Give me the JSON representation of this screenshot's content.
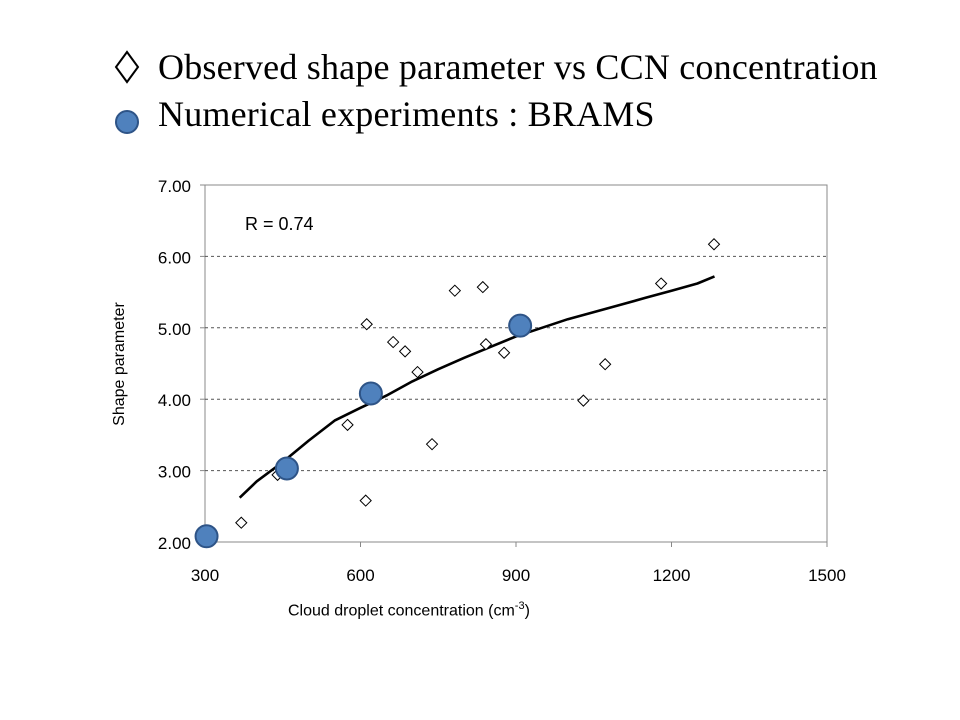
{
  "legend": {
    "observed_label": "Observed shape parameter vs CCN concentration",
    "numerical_label": "Numerical experiments : BRAMS"
  },
  "chart_data": {
    "type": "scatter",
    "xlabel_main": "Cloud droplet concentration (cm",
    "xlabel_sup": "-3",
    "xlabel_tail": ")",
    "ylabel": "Shape parameter",
    "annotation": "R = 0.74",
    "xlim": [
      300,
      1500
    ],
    "ylim": [
      2.0,
      7.0
    ],
    "x_ticks": [
      300,
      600,
      900,
      1200,
      1500
    ],
    "y_ticks": [
      2.0,
      3.0,
      4.0,
      5.0,
      6.0,
      7.0
    ],
    "x_tick_labels": [
      "300",
      "600",
      "900",
      "1200",
      "1500"
    ],
    "y_tick_labels": [
      "2.00",
      "3.00",
      "4.00",
      "5.00",
      "6.00",
      "7.00"
    ],
    "grid": "horizontal dashed",
    "series": [
      {
        "marker": "open-diamond",
        "points": [
          [
            370,
            2.27
          ],
          [
            440,
            2.94
          ],
          [
            575,
            3.64
          ],
          [
            610,
            2.58
          ],
          [
            612,
            5.05
          ],
          [
            663,
            4.8
          ],
          [
            686,
            4.67
          ],
          [
            710,
            4.38
          ],
          [
            738,
            3.37
          ],
          [
            782,
            5.52
          ],
          [
            836,
            5.57
          ],
          [
            842,
            4.77
          ],
          [
            877,
            4.65
          ],
          [
            1030,
            3.98
          ],
          [
            1072,
            4.49
          ],
          [
            1180,
            5.62
          ],
          [
            1282,
            6.17
          ]
        ]
      },
      {
        "marker": "blue-circle",
        "color": "#4f81bd",
        "points": [
          [
            303,
            2.08
          ],
          [
            458,
            3.03
          ],
          [
            620,
            4.08
          ],
          [
            908,
            5.03
          ]
        ]
      },
      {
        "marker": "trend-line",
        "points": [
          [
            367,
            2.62
          ],
          [
            400,
            2.85
          ],
          [
            450,
            3.12
          ],
          [
            500,
            3.42
          ],
          [
            550,
            3.7
          ],
          [
            600,
            3.88
          ],
          [
            650,
            4.05
          ],
          [
            700,
            4.25
          ],
          [
            750,
            4.42
          ],
          [
            800,
            4.58
          ],
          [
            850,
            4.73
          ],
          [
            900,
            4.88
          ],
          [
            950,
            5.0
          ],
          [
            1000,
            5.12
          ],
          [
            1050,
            5.22
          ],
          [
            1100,
            5.32
          ],
          [
            1150,
            5.42
          ],
          [
            1200,
            5.52
          ],
          [
            1250,
            5.62
          ],
          [
            1283,
            5.72
          ]
        ]
      }
    ]
  }
}
